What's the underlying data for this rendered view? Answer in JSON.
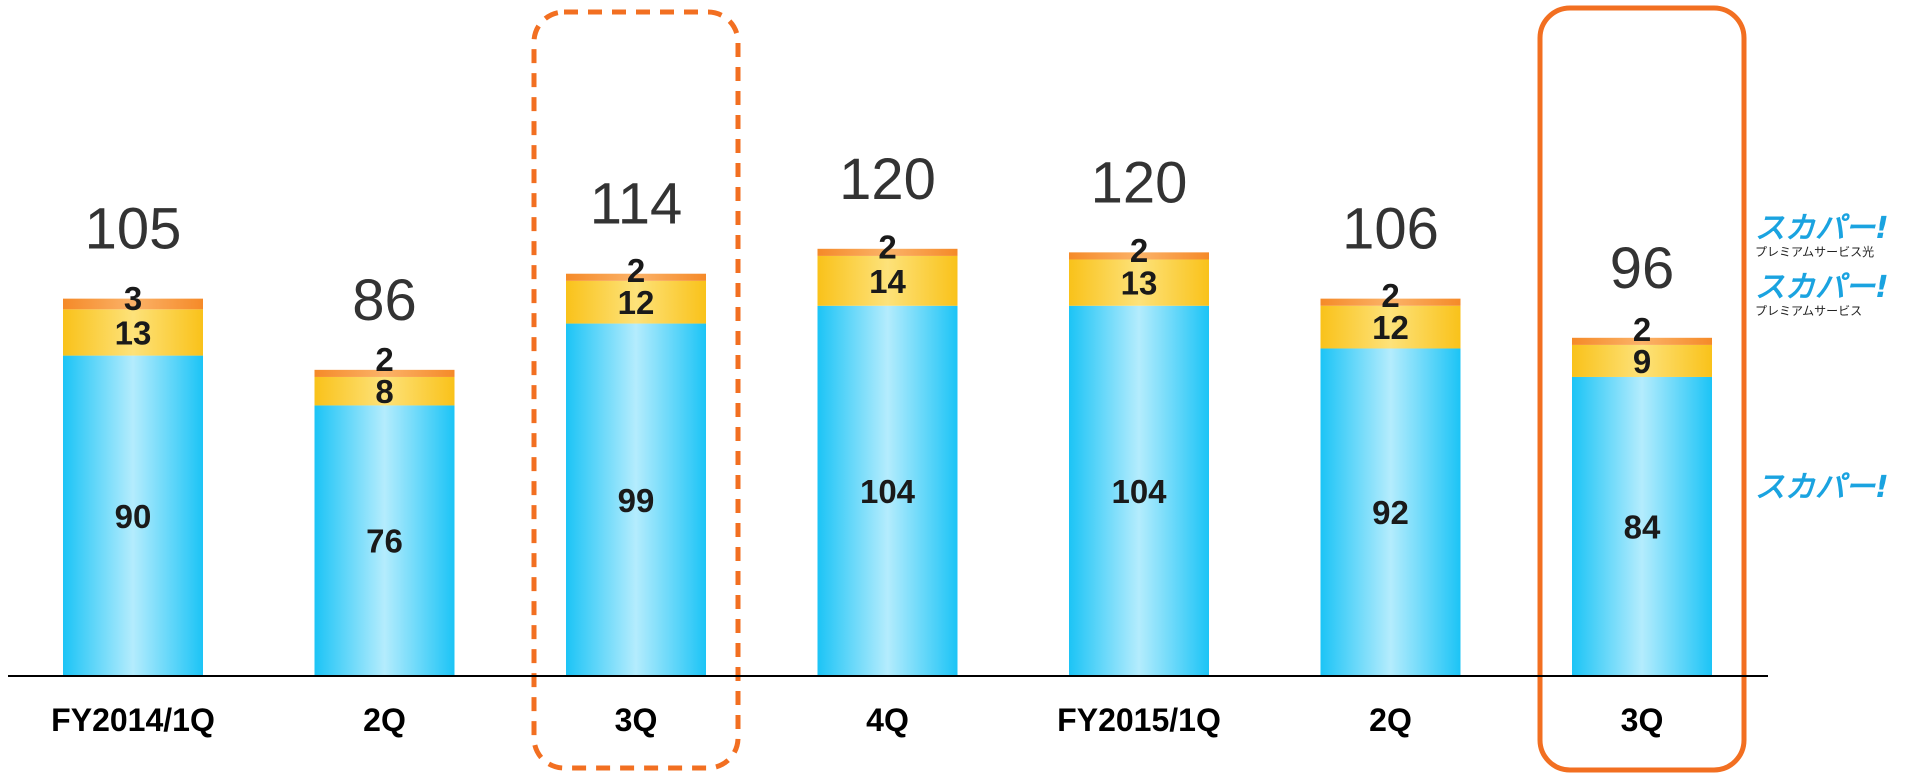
{
  "chart_data": {
    "type": "bar",
    "stacked": true,
    "categories": [
      "FY2014/1Q",
      "2Q",
      "3Q",
      "4Q",
      "FY2015/1Q",
      "2Q",
      "3Q"
    ],
    "series": [
      {
        "name": "スカパー!",
        "values": [
          90,
          76,
          99,
          104,
          104,
          92,
          84
        ],
        "color": "#2ec8f5"
      },
      {
        "name": "スカパー! プレミアムサービス",
        "values": [
          13,
          8,
          12,
          14,
          13,
          12,
          9
        ],
        "color": "#fbd02e"
      },
      {
        "name": "スカパー! プレミアムサービス光",
        "values": [
          3,
          2,
          2,
          2,
          2,
          2,
          2
        ],
        "color": "#f6932f"
      }
    ],
    "totals": [
      "105",
      "86",
      "114",
      "120",
      "120",
      "106",
      "96"
    ],
    "highlight": [
      {
        "category_index": 2,
        "style": "dashed",
        "color": "#f26f21"
      },
      {
        "category_index": 6,
        "style": "solid",
        "color": "#f26f21"
      }
    ],
    "ylim": [
      0,
      125
    ],
    "grid": false,
    "legend_position": "right",
    "title": "",
    "xlabel": "",
    "ylabel": ""
  },
  "legend": {
    "items": [
      {
        "brand": "スカパー!",
        "sub": "プレミアムサービス光",
        "color": "#1aa3e0"
      },
      {
        "brand": "スカパー!",
        "sub": "プレミアムサービス",
        "color": "#1aa3e0"
      },
      {
        "brand": "スカパー!",
        "sub": "",
        "color": "#1aa3e0"
      }
    ]
  }
}
